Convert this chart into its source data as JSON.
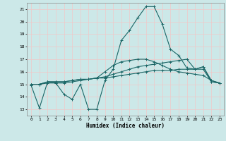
{
  "xlabel": "Humidex (Indice chaleur)",
  "background_color": "#cce8e8",
  "grid_color": "#f0c8c8",
  "line_color": "#1a6666",
  "xlim": [
    -0.5,
    23.5
  ],
  "ylim": [
    12.5,
    21.5
  ],
  "xticks": [
    0,
    1,
    2,
    3,
    4,
    5,
    6,
    7,
    8,
    9,
    10,
    11,
    12,
    13,
    14,
    15,
    16,
    17,
    18,
    19,
    20,
    21,
    22,
    23
  ],
  "yticks": [
    13,
    14,
    15,
    16,
    17,
    18,
    19,
    20,
    21
  ],
  "series": [
    [
      14.9,
      13.1,
      15.2,
      15.1,
      14.2,
      13.8,
      15.0,
      13.0,
      13.0,
      15.3,
      16.2,
      18.5,
      19.3,
      20.3,
      21.2,
      21.2,
      19.8,
      17.8,
      17.3,
      16.3,
      16.2,
      16.4,
      15.2,
      15.1
    ],
    [
      15.0,
      15.0,
      15.2,
      15.2,
      15.2,
      15.3,
      15.4,
      15.4,
      15.5,
      15.5,
      15.6,
      15.7,
      15.8,
      15.9,
      16.0,
      16.1,
      16.1,
      16.1,
      16.2,
      16.2,
      16.2,
      16.2,
      15.2,
      15.1
    ],
    [
      15.0,
      15.0,
      15.1,
      15.1,
      15.1,
      15.2,
      15.3,
      15.4,
      15.5,
      15.6,
      15.8,
      16.0,
      16.2,
      16.4,
      16.5,
      16.6,
      16.7,
      16.8,
      16.9,
      17.0,
      16.2,
      16.4,
      15.3,
      15.1
    ],
    [
      15.0,
      15.0,
      15.2,
      15.2,
      15.2,
      15.3,
      15.4,
      15.4,
      15.5,
      16.0,
      16.5,
      16.8,
      16.9,
      17.0,
      17.0,
      16.8,
      16.5,
      16.2,
      16.0,
      15.9,
      15.8,
      15.7,
      15.3,
      15.1
    ]
  ]
}
